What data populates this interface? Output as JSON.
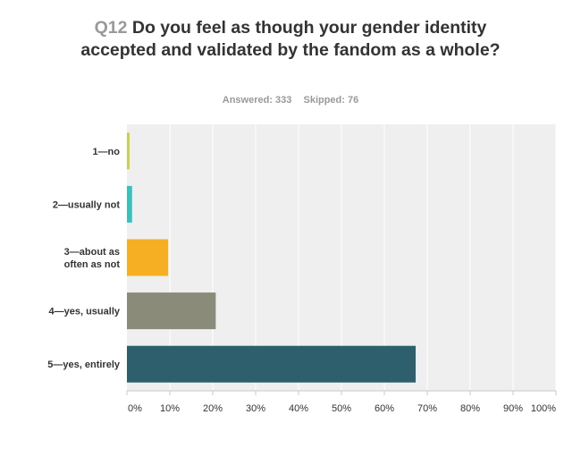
{
  "question": {
    "number": "Q12",
    "text": "Do you feel as though your gender identity accepted and validated by the fandom as a whole?"
  },
  "stats": {
    "answered": "Answered: 333",
    "skipped": "Skipped: 76"
  },
  "chart_data": {
    "type": "bar",
    "orientation": "horizontal",
    "categories": [
      [
        "1—no"
      ],
      [
        "2—usually not"
      ],
      [
        "3—about as",
        "often as not"
      ],
      [
        "4—yes, usually"
      ],
      [
        "5—yes, entirely"
      ]
    ],
    "values": [
      0.6,
      1.2,
      9.6,
      20.7,
      67.3
    ],
    "colors": [
      "#c9cf4a",
      "#3cc0bc",
      "#f6ae22",
      "#8b8b7a",
      "#2e5f6d"
    ],
    "xlim": [
      0,
      100
    ],
    "xticks": [
      "0%",
      "10%",
      "20%",
      "30%",
      "40%",
      "50%",
      "60%",
      "70%",
      "80%",
      "90%",
      "100%"
    ],
    "grid": true,
    "plot_background": "#efefef",
    "gridline_color": "#ffffff"
  }
}
